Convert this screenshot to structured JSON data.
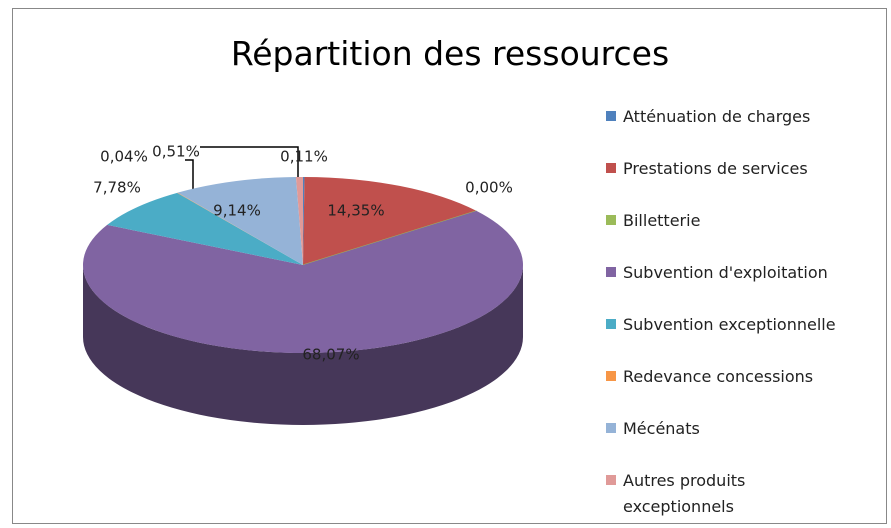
{
  "chart_data": {
    "type": "pie",
    "title": "Répartition des ressources",
    "categories": [
      "Atténuation de charges",
      "Prestations de services",
      "Billetterie",
      "Subvention d'exploitation",
      "Subvention exceptionnelle",
      "Redevance concessions",
      "Mécénats",
      "Autres produits exceptionnels"
    ],
    "values": [
      0.11,
      14.35,
      0,
      68.07,
      7.78,
      0.04,
      9.14,
      0.51
    ],
    "value_labels": [
      "0,11%",
      "14,35%",
      "0,00%",
      "68,07%",
      "7,78%",
      "0,04%",
      "9,14%",
      "0,51%"
    ],
    "colors": [
      "#4f81bd",
      "#c0504d",
      "#9bbb59",
      "#8064a2",
      "#4bacc6",
      "#f79646",
      "#95b3d7",
      "#e09a98"
    ],
    "legend": "right"
  }
}
